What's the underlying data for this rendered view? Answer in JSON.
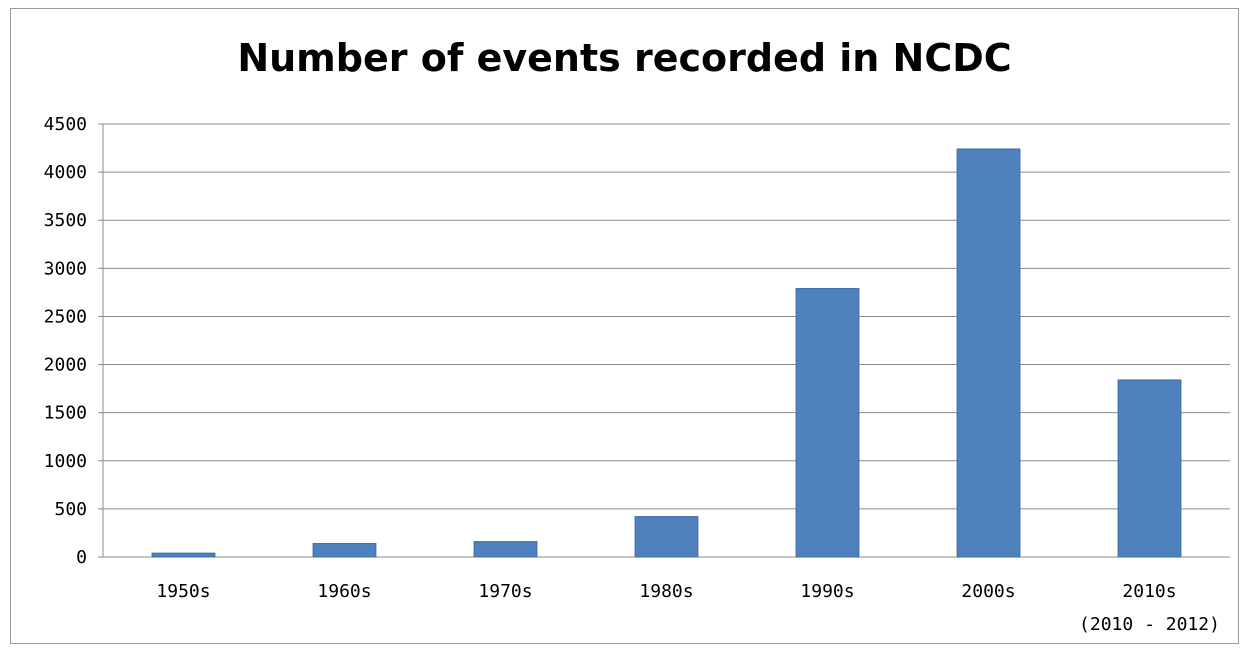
{
  "chart_data": {
    "type": "bar",
    "title": "Number of events recorded in NCDC",
    "xlabel": "",
    "ylabel": "",
    "categories": [
      [
        "1950s"
      ],
      [
        "1960s"
      ],
      [
        "1970s"
      ],
      [
        "1980s"
      ],
      [
        "1990s"
      ],
      [
        "2000s"
      ],
      [
        "2010s",
        "(2010 - 2012)"
      ]
    ],
    "values": [
      40,
      140,
      160,
      420,
      2790,
      4240,
      1840
    ],
    "ylim": [
      0,
      4500
    ],
    "yticks": [
      "0",
      "500",
      "1000",
      "1500",
      "2000",
      "2500",
      "3000",
      "3500",
      "4000",
      "4500"
    ],
    "grid": true,
    "legend": "none",
    "colors": {
      "bar_fill": "#4f81bd",
      "bar_edge": "#3d6da8",
      "grid": "#8c8c8c",
      "axis": "#8c8c8c"
    }
  }
}
